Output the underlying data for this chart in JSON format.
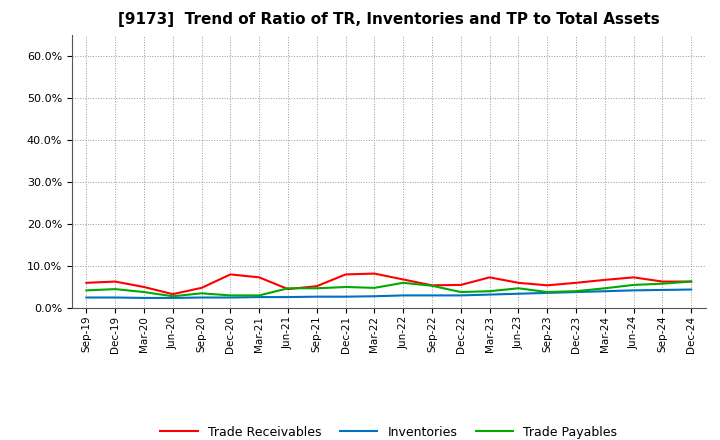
{
  "title": "[9173]  Trend of Ratio of TR, Inventories and TP to Total Assets",
  "x_labels": [
    "Sep-19",
    "Dec-19",
    "Mar-20",
    "Jun-20",
    "Sep-20",
    "Dec-20",
    "Mar-21",
    "Jun-21",
    "Sep-21",
    "Dec-21",
    "Mar-22",
    "Jun-22",
    "Sep-22",
    "Dec-22",
    "Mar-23",
    "Jun-23",
    "Sep-23",
    "Dec-23",
    "Mar-24",
    "Jun-24",
    "Sep-24",
    "Dec-24"
  ],
  "trade_receivables": [
    0.06,
    0.063,
    0.05,
    0.033,
    0.048,
    0.08,
    0.073,
    0.045,
    0.052,
    0.08,
    0.082,
    0.068,
    0.054,
    0.055,
    0.073,
    0.06,
    0.054,
    0.06,
    0.067,
    0.073,
    0.063,
    0.063
  ],
  "inventories": [
    0.025,
    0.025,
    0.024,
    0.024,
    0.025,
    0.025,
    0.026,
    0.026,
    0.027,
    0.027,
    0.028,
    0.03,
    0.03,
    0.03,
    0.032,
    0.034,
    0.036,
    0.038,
    0.04,
    0.042,
    0.043,
    0.044
  ],
  "trade_payables": [
    0.042,
    0.045,
    0.038,
    0.028,
    0.035,
    0.03,
    0.03,
    0.047,
    0.047,
    0.05,
    0.048,
    0.06,
    0.053,
    0.038,
    0.04,
    0.047,
    0.038,
    0.04,
    0.047,
    0.055,
    0.058,
    0.063
  ],
  "line_colors": {
    "trade_receivables": "#ff0000",
    "inventories": "#0070c0",
    "trade_payables": "#00aa00"
  },
  "ylim": [
    0.0,
    0.65
  ],
  "yticks": [
    0.0,
    0.1,
    0.2,
    0.3,
    0.4,
    0.5,
    0.6
  ],
  "background_color": "#ffffff",
  "grid_color": "#999999"
}
